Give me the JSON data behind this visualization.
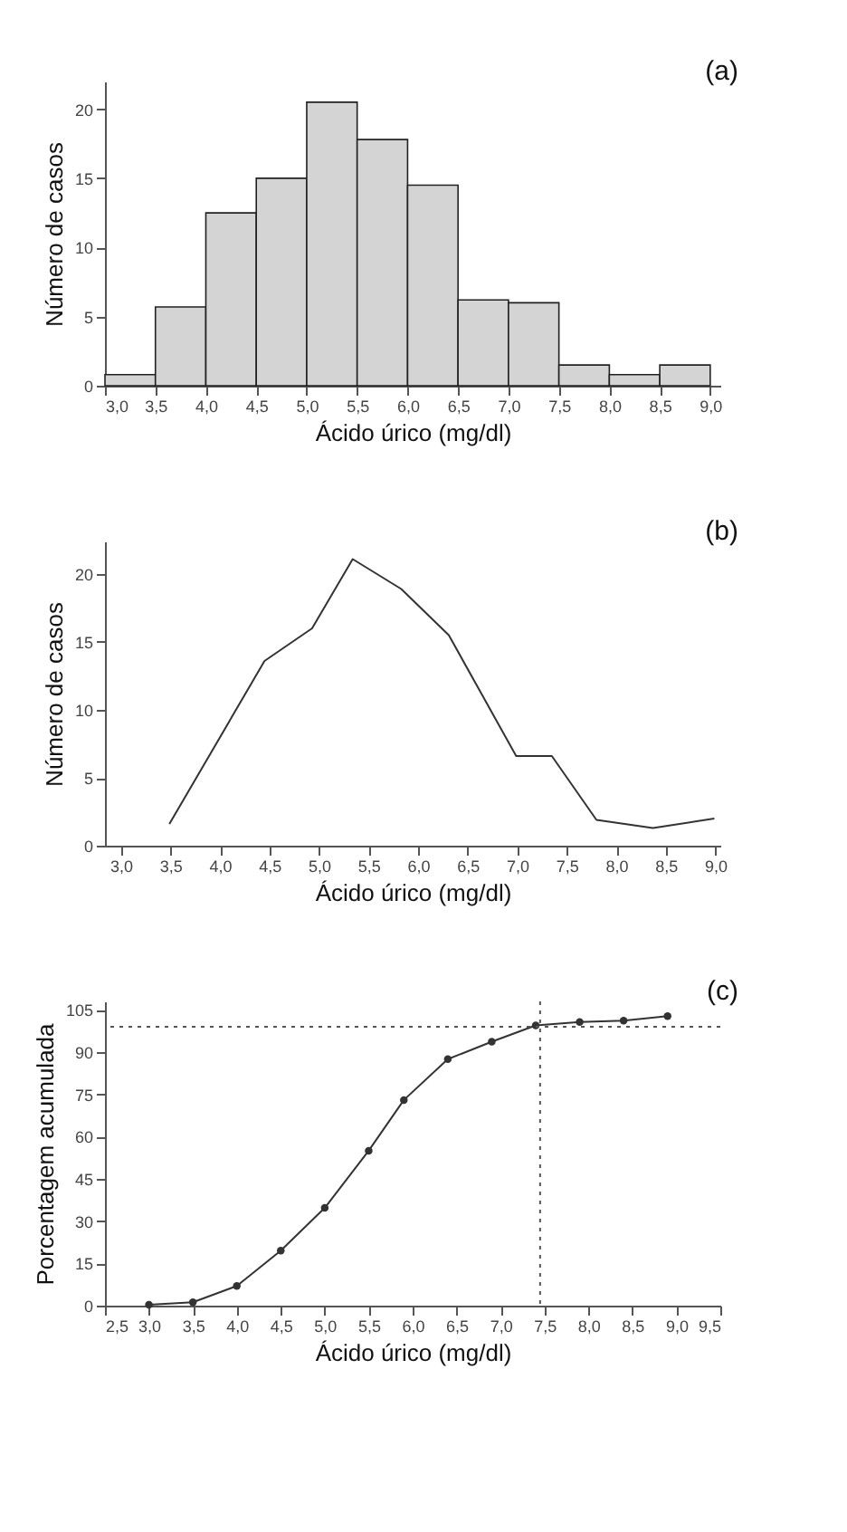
{
  "chart_data": [
    {
      "type": "histogram",
      "xlabel": "Ácido úrico (mg/dl)",
      "ylabel": "Número de casos",
      "annotations": [
        "(a)"
      ],
      "color": "#d4d4d4",
      "bins": [
        3.0,
        3.5,
        4.0,
        4.5,
        5.0,
        5.5,
        6.0,
        6.5,
        7.0,
        7.5,
        8.0,
        8.5,
        9.0
      ],
      "values": [
        0.8,
        5.7,
        12.5,
        15,
        20.5,
        17.8,
        14.5,
        6.2,
        6,
        1.5,
        0.8,
        1.5
      ],
      "xlim": [
        3.0,
        9.1
      ],
      "ylim": [
        0,
        22
      ],
      "xticks": [
        {
          "value": 3.0,
          "label": "3,0"
        },
        {
          "value": 3.5,
          "label": "3,5"
        },
        {
          "value": 4.0,
          "label": "4,0"
        },
        {
          "value": 4.5,
          "label": "4,5"
        },
        {
          "value": 5.0,
          "label": "5,0"
        },
        {
          "value": 5.5,
          "label": "5,5"
        },
        {
          "value": 6.0,
          "label": "6,0"
        },
        {
          "value": 6.5,
          "label": "6,5"
        },
        {
          "value": 7.0,
          "label": "7,0"
        },
        {
          "value": 7.5,
          "label": "7,5"
        },
        {
          "value": 8.0,
          "label": "8,0"
        },
        {
          "value": 8.5,
          "label": "8,5"
        },
        {
          "value": 9.0,
          "label": "9,0"
        }
      ],
      "yticks": [
        0,
        5,
        10,
        15,
        20
      ],
      "grid": false
    },
    {
      "type": "line",
      "xlabel": "Ácido úrico (mg/dl)",
      "ylabel": "Número de casos",
      "annotations": [
        "(b)"
      ],
      "marker": "none",
      "line_style": "solid",
      "series": [
        {
          "color": "#333333",
          "x": [
            3.49,
            4.45,
            4.93,
            5.34,
            5.83,
            6.31,
            6.99,
            7.35,
            7.8,
            8.37,
            8.99
          ],
          "values": [
            1.6,
            13.6,
            16.0,
            21.1,
            18.9,
            15.5,
            6.6,
            6.6,
            1.9,
            1.3,
            2.0
          ]
        }
      ],
      "xlim": [
        2.84,
        9.05
      ],
      "ylim": [
        0,
        22.4
      ],
      "xticks": [
        {
          "value": 3.0,
          "label": "3,0"
        },
        {
          "value": 3.5,
          "label": "3,5"
        },
        {
          "value": 4.0,
          "label": "4,0"
        },
        {
          "value": 4.5,
          "label": "4,5"
        },
        {
          "value": 5.0,
          "label": "5,0"
        },
        {
          "value": 5.5,
          "label": "5,5"
        },
        {
          "value": 6.0,
          "label": "6,0"
        },
        {
          "value": 6.5,
          "label": "6,5"
        },
        {
          "value": 7.0,
          "label": "7,0"
        },
        {
          "value": 7.5,
          "label": "7,5"
        },
        {
          "value": 8.0,
          "label": "8,0"
        },
        {
          "value": 8.5,
          "label": "8,5"
        },
        {
          "value": 9.0,
          "label": "9,0"
        }
      ],
      "yticks": [
        0,
        5,
        10,
        15,
        20
      ],
      "grid": false
    },
    {
      "type": "line",
      "xlabel": "Ácido úrico (mg/dl)",
      "ylabel": "Porcentagem acumulada",
      "annotations": [
        "(c)"
      ],
      "marker": "circle",
      "line_style": "solid",
      "series": [
        {
          "color": "#333333",
          "x": [
            3.0,
            3.5,
            4.0,
            4.5,
            5.0,
            5.5,
            5.9,
            6.4,
            6.9,
            7.4,
            7.9,
            8.4,
            8.9
          ],
          "values": [
            0.3,
            1.2,
            7,
            19.5,
            34.7,
            55,
            73,
            87.5,
            93.7,
            99.5,
            100.7,
            101.2,
            102.8
          ]
        }
      ],
      "ref_lines": [
        {
          "axis": "y",
          "value": 99,
          "line_style": "dotted",
          "color": "#555555"
        },
        {
          "axis": "x",
          "value": 7.45,
          "line_style": "dotted",
          "color": "#555555"
        }
      ],
      "xlim": [
        2.5,
        9.5
      ],
      "ylim": [
        0,
        108
      ],
      "xticks": [
        {
          "value": 2.5,
          "label": "2,5"
        },
        {
          "value": 3.0,
          "label": "3,0"
        },
        {
          "value": 3.5,
          "label": "3,5"
        },
        {
          "value": 4.0,
          "label": "4,0"
        },
        {
          "value": 4.5,
          "label": "4,5"
        },
        {
          "value": 5.0,
          "label": "5,0"
        },
        {
          "value": 5.5,
          "label": "5,5"
        },
        {
          "value": 6.0,
          "label": "6,0"
        },
        {
          "value": 6.5,
          "label": "6,5"
        },
        {
          "value": 7.0,
          "label": "7,0"
        },
        {
          "value": 7.5,
          "label": "7,5"
        },
        {
          "value": 8.0,
          "label": "8,0"
        },
        {
          "value": 8.5,
          "label": "8,5"
        },
        {
          "value": 9.0,
          "label": "9,0"
        },
        {
          "value": 9.5,
          "label": "9,5"
        }
      ],
      "yticks": [
        0,
        15,
        30,
        45,
        60,
        75,
        90,
        105
      ],
      "grid": false
    }
  ]
}
